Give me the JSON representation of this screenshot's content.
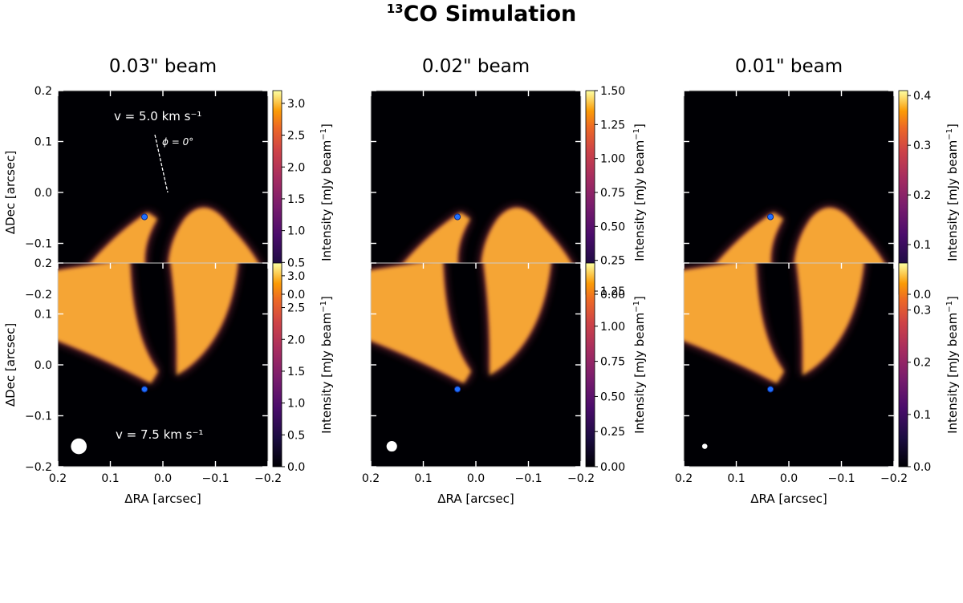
{
  "title": {
    "sup": "13",
    "main": "CO Simulation"
  },
  "colors": {
    "map_bg": "#000004",
    "planet": "#1f6fff",
    "planet_edge": "#0a2a8a",
    "beam": "#ffffff",
    "colormap": "inferno"
  },
  "chart_data": {
    "type": "heatmap",
    "xlabel": "ΔRA  [arcsec]",
    "ylabel": "ΔDec  [arcsec]",
    "xlim": [
      0.2,
      -0.2
    ],
    "ylim": [
      -0.2,
      0.2
    ],
    "xticks": [
      "0.2",
      "0.1",
      "0.0",
      "−0.1",
      "−0.2"
    ],
    "yticks": [
      "0.2",
      "0.1",
      "0.0",
      "−0.1",
      "−0.2"
    ],
    "colorbar_label": "Intensity [mJy beam",
    "colorbar_exp": "−1",
    "columns": [
      "0.03\" beam",
      "0.02\" beam",
      "0.01\" beam"
    ],
    "annotations": {
      "velocity_top": "v = 5.0 km s⁻¹",
      "velocity_bottom": "v = 7.5 km s⁻¹",
      "phi": "ϕ = 0°"
    },
    "planet": {
      "ra": 0.035,
      "dec": -0.048
    },
    "panels": [
      {
        "row": 0,
        "col": 0,
        "beam_arcsec": 0.03,
        "velocity": 5.0,
        "vmax": 3.2,
        "cbar_ticks": [
          "0.0",
          "0.5",
          "1.0",
          "1.5",
          "2.0",
          "2.5",
          "3.0"
        ],
        "cbar_values": [
          0,
          0.5,
          1,
          1.5,
          2,
          2.5,
          3
        ]
      },
      {
        "row": 0,
        "col": 1,
        "beam_arcsec": 0.02,
        "velocity": 5.0,
        "vmax": 1.5,
        "cbar_ticks": [
          "0.00",
          "0.25",
          "0.50",
          "0.75",
          "1.00",
          "1.25",
          "1.50"
        ],
        "cbar_values": [
          0,
          0.25,
          0.5,
          0.75,
          1,
          1.25,
          1.5
        ]
      },
      {
        "row": 0,
        "col": 2,
        "beam_arcsec": 0.01,
        "velocity": 5.0,
        "vmax": 0.41,
        "cbar_ticks": [
          "0.0",
          "0.1",
          "0.2",
          "0.3",
          "0.4"
        ],
        "cbar_values": [
          0,
          0.1,
          0.2,
          0.3,
          0.4
        ]
      },
      {
        "row": 1,
        "col": 0,
        "beam_arcsec": 0.03,
        "velocity": 7.5,
        "vmax": 3.2,
        "cbar_ticks": [
          "0.0",
          "0.5",
          "1.0",
          "1.5",
          "2.0",
          "2.5",
          "3.0"
        ],
        "cbar_values": [
          0,
          0.5,
          1,
          1.5,
          2,
          2.5,
          3
        ]
      },
      {
        "row": 1,
        "col": 1,
        "beam_arcsec": 0.02,
        "velocity": 7.5,
        "vmax": 1.45,
        "cbar_ticks": [
          "0.00",
          "0.25",
          "0.50",
          "0.75",
          "1.00",
          "1.25"
        ],
        "cbar_values": [
          0,
          0.25,
          0.5,
          0.75,
          1,
          1.25
        ]
      },
      {
        "row": 1,
        "col": 2,
        "beam_arcsec": 0.01,
        "velocity": 7.5,
        "vmax": 0.39,
        "cbar_ticks": [
          "0.0",
          "0.1",
          "0.2",
          "0.3"
        ],
        "cbar_values": [
          0,
          0.1,
          0.2,
          0.3
        ]
      }
    ]
  }
}
